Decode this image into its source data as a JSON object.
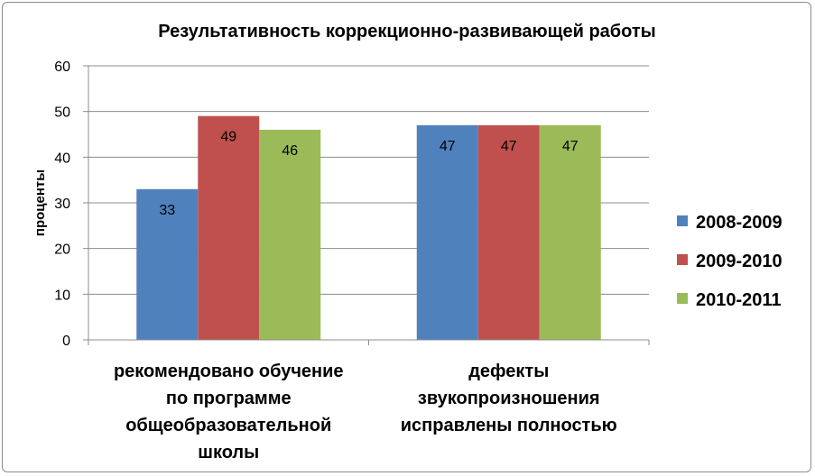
{
  "chart_data": {
    "type": "bar",
    "title": "Результативность коррекционно-развивающей работы",
    "ylabel": "проценты",
    "xlabel": "",
    "ylim": [
      0,
      60
    ],
    "yticks": [
      0,
      10,
      20,
      30,
      40,
      50,
      60
    ],
    "grid": true,
    "legend_position": "right",
    "categories": [
      [
        "рекомендовано обучение",
        "по программе",
        "общеобразовательной",
        "школы"
      ],
      [
        "дефекты",
        "звукопроизношения",
        "исправлены полностью"
      ]
    ],
    "series": [
      {
        "name": "2008-2009",
        "color": "#4f81bd",
        "values": [
          33,
          47
        ]
      },
      {
        "name": "2009-2010",
        "color": "#c0504d",
        "values": [
          49,
          47
        ]
      },
      {
        "name": "2010-2011",
        "color": "#9bbb59",
        "values": [
          46,
          47
        ]
      }
    ]
  }
}
